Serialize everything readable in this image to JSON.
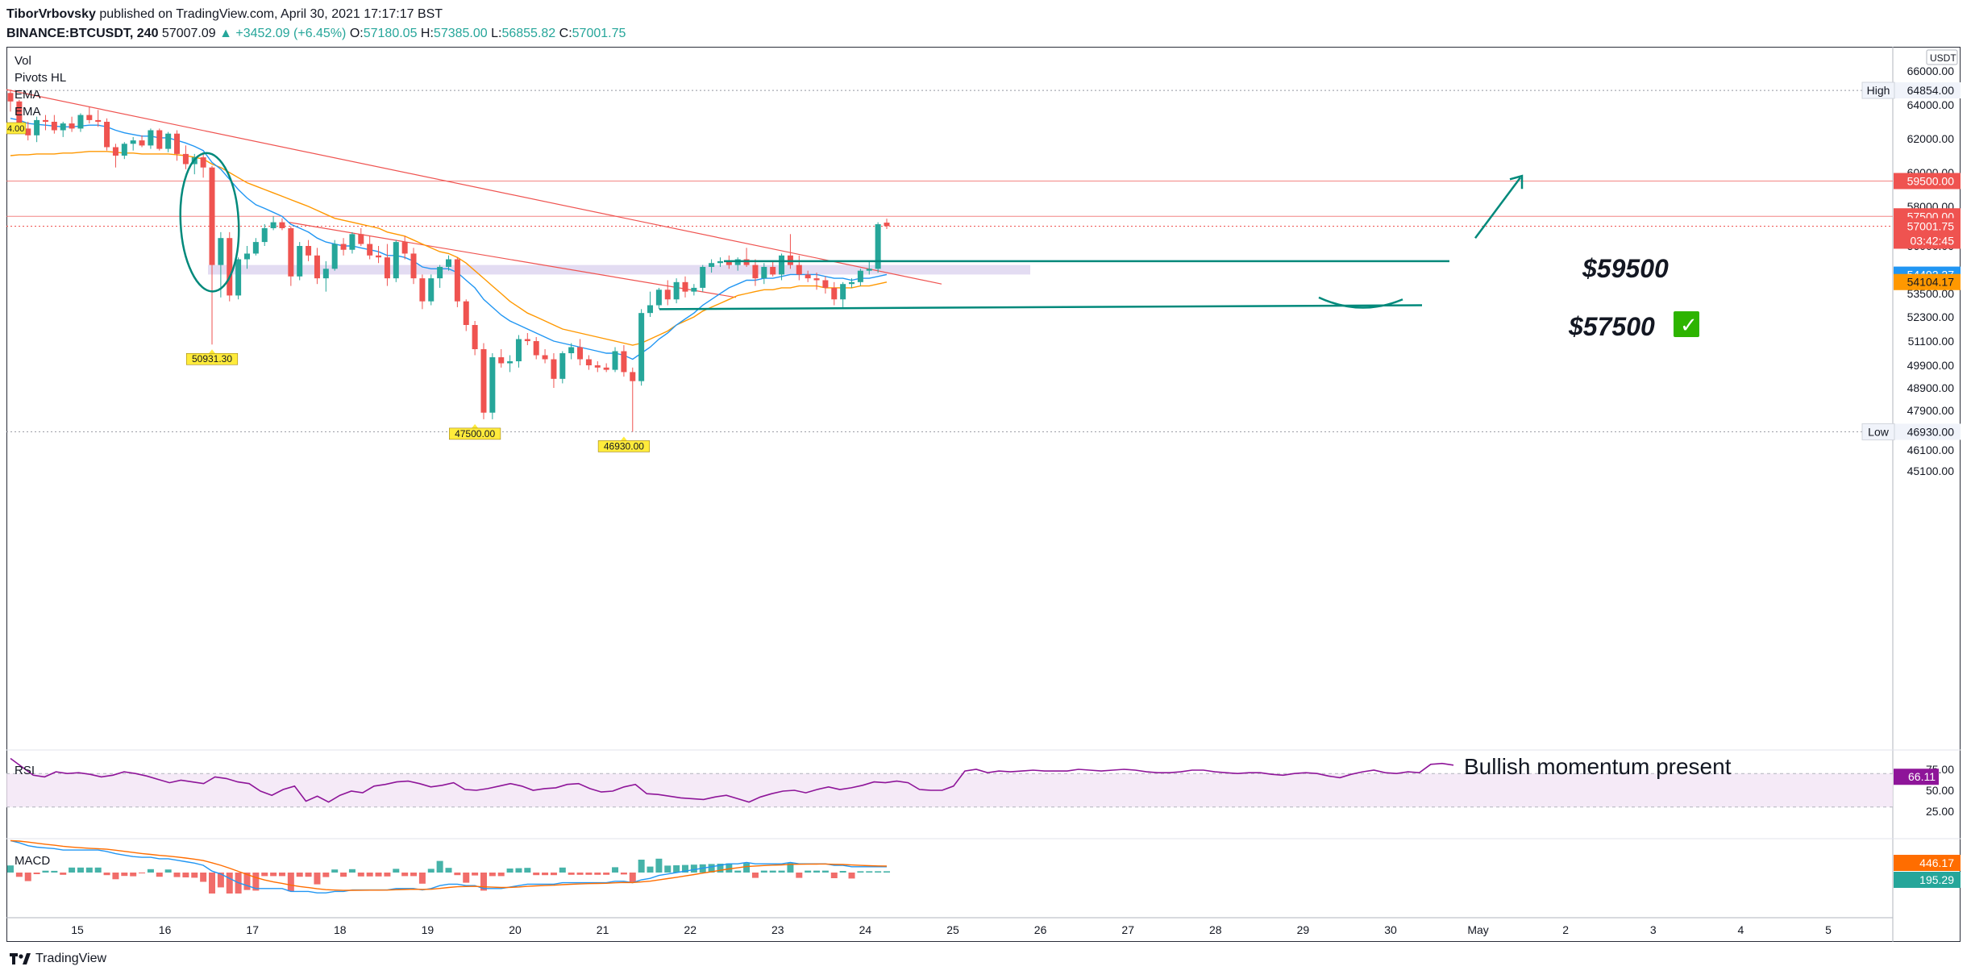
{
  "header": {
    "author": "TiborVrbovsky",
    "published": "published on TradingView.com, April 30, 2021 17:17:17 BST",
    "symbol": "BINANCE:BTCUSDT, 240",
    "last": "57007.09",
    "change": "▲ +3452.09 (+6.45%)",
    "o_label": "O:",
    "o_value": "57180.05",
    "h_label": "H:",
    "h_value": "57385.00",
    "l_label": "L:",
    "l_value": "56855.82",
    "c_label": "C:",
    "c_value": "57001.75"
  },
  "legend": [
    "Vol",
    "Pivots HL",
    "EMA",
    "EMA"
  ],
  "legend_left_tag": "4.00",
  "currency": "USDT",
  "footer": {
    "brand": "TradingView"
  },
  "colors": {
    "bull": "#26a69a",
    "bear": "#ef5350",
    "ema_fast": "#2196f3",
    "ema_slow": "#ff9800",
    "rsi": "#8e1599",
    "rsi_band": "#f3e5f5",
    "zone": "#d1c4e9",
    "trendline": "#ef5350",
    "drawing": "#00897b",
    "level": "#ef5350"
  },
  "chart_data": {
    "type": "candlestick",
    "y_axis_prices": [
      "66000.00",
      "64000.00",
      "62000.00",
      "60000.00",
      "58000.00",
      "56000.00",
      "53500.00",
      "52300.00",
      "51100.00",
      "49900.00",
      "48900.00",
      "47900.00",
      "46100.00",
      "45100.00"
    ],
    "ylim": [
      45100,
      66900
    ],
    "x_ticks": [
      "15",
      "16",
      "17",
      "18",
      "19",
      "20",
      "21",
      "22",
      "23",
      "24",
      "25",
      "26",
      "27",
      "28",
      "29",
      "30",
      "May",
      "2",
      "3",
      "4",
      "5"
    ],
    "price_tags": {
      "high": {
        "label": "High",
        "value": "64854.00"
      },
      "low": {
        "label": "Low",
        "value": "46930.00"
      },
      "level1": "59500.00",
      "level2": "57500.00",
      "last": "57001.75",
      "countdown": "03:42:45",
      "ema_fast": "54492.27",
      "ema_slow": "54104.17"
    },
    "pivot_labels": [
      "50931.30",
      "47500.00",
      "46930.00"
    ],
    "annotations": {
      "target1": "$59500",
      "target2": "$57500",
      "check": "✓",
      "rsi_note": "Bullish momentum present"
    },
    "rsi": {
      "label": "RSI",
      "value": "66.11",
      "ticks": [
        "75.00",
        "50.00",
        "25.00"
      ],
      "series": [
        88,
        78,
        68,
        66,
        72,
        70,
        71,
        69,
        66,
        68,
        72,
        70,
        67,
        63,
        59,
        62,
        60,
        58,
        66,
        64,
        60,
        58,
        49,
        44,
        51,
        55,
        37,
        43,
        36,
        44,
        49,
        47,
        55,
        57,
        60,
        61,
        58,
        54,
        56,
        59,
        51,
        50,
        52,
        55,
        58,
        55,
        50,
        52,
        53,
        57,
        58,
        52,
        48,
        49,
        54,
        57,
        46,
        45,
        43,
        41,
        40,
        39,
        42,
        44,
        40,
        36,
        42,
        46,
        49,
        50,
        47,
        51,
        54,
        51,
        53,
        56,
        60,
        59,
        61,
        59,
        51,
        50,
        50,
        55,
        73,
        75,
        71,
        73,
        72,
        73,
        74,
        73,
        73,
        73,
        75,
        74,
        73,
        74,
        75,
        74,
        72,
        71,
        71,
        72,
        74,
        74,
        72,
        71,
        70,
        71,
        71,
        69,
        68,
        70,
        71,
        70,
        67,
        65,
        69,
        72,
        74,
        71,
        70,
        72,
        71,
        81,
        82,
        80
      ]
    },
    "macd": {
      "label": "MACD",
      "value_signal": "446.17",
      "value_macd": "195.29"
    },
    "candles": [
      {
        "o": 64700,
        "h": 64900,
        "l": 63600,
        "c": 64200
      },
      {
        "o": 64200,
        "h": 64300,
        "l": 62300,
        "c": 62600
      },
      {
        "o": 62600,
        "h": 63000,
        "l": 61900,
        "c": 62200
      },
      {
        "o": 62200,
        "h": 63300,
        "l": 61800,
        "c": 63100
      },
      {
        "o": 63100,
        "h": 63400,
        "l": 62500,
        "c": 63000
      },
      {
        "o": 63000,
        "h": 63400,
        "l": 62300,
        "c": 62500
      },
      {
        "o": 62500,
        "h": 63000,
        "l": 62100,
        "c": 62900
      },
      {
        "o": 62900,
        "h": 63300,
        "l": 62400,
        "c": 62600
      },
      {
        "o": 62600,
        "h": 63500,
        "l": 62400,
        "c": 63400
      },
      {
        "o": 63400,
        "h": 63900,
        "l": 62900,
        "c": 63100
      },
      {
        "o": 63100,
        "h": 63700,
        "l": 62700,
        "c": 63000
      },
      {
        "o": 63000,
        "h": 63200,
        "l": 61300,
        "c": 61500
      },
      {
        "o": 61500,
        "h": 61700,
        "l": 60300,
        "c": 61000
      },
      {
        "o": 61000,
        "h": 61800,
        "l": 60800,
        "c": 61700
      },
      {
        "o": 61700,
        "h": 62100,
        "l": 61300,
        "c": 61900
      },
      {
        "o": 61900,
        "h": 62200,
        "l": 61500,
        "c": 61600
      },
      {
        "o": 61600,
        "h": 62600,
        "l": 61400,
        "c": 62500
      },
      {
        "o": 62500,
        "h": 62600,
        "l": 61300,
        "c": 61400
      },
      {
        "o": 61400,
        "h": 62400,
        "l": 61200,
        "c": 62300
      },
      {
        "o": 62300,
        "h": 62500,
        "l": 60700,
        "c": 61100
      },
      {
        "o": 61100,
        "h": 61600,
        "l": 60200,
        "c": 60500
      },
      {
        "o": 60500,
        "h": 61100,
        "l": 59900,
        "c": 60900
      },
      {
        "o": 60900,
        "h": 61200,
        "l": 59700,
        "c": 60300
      },
      {
        "o": 60300,
        "h": 60400,
        "l": 50931,
        "c": 55000
      },
      {
        "o": 55000,
        "h": 56700,
        "l": 53300,
        "c": 56400
      },
      {
        "o": 56400,
        "h": 56700,
        "l": 53100,
        "c": 53400
      },
      {
        "o": 53400,
        "h": 55400,
        "l": 53200,
        "c": 55300
      },
      {
        "o": 55300,
        "h": 56000,
        "l": 54800,
        "c": 55600
      },
      {
        "o": 55600,
        "h": 56400,
        "l": 55500,
        "c": 56200
      },
      {
        "o": 56200,
        "h": 57100,
        "l": 56000,
        "c": 56900
      },
      {
        "o": 56900,
        "h": 57500,
        "l": 56800,
        "c": 57200
      },
      {
        "o": 57200,
        "h": 57400,
        "l": 56800,
        "c": 56900
      },
      {
        "o": 56900,
        "h": 57000,
        "l": 53900,
        "c": 54400
      },
      {
        "o": 54400,
        "h": 56200,
        "l": 54200,
        "c": 56000
      },
      {
        "o": 56000,
        "h": 56300,
        "l": 55200,
        "c": 55500
      },
      {
        "o": 55500,
        "h": 55900,
        "l": 54000,
        "c": 54300
      },
      {
        "o": 54300,
        "h": 55200,
        "l": 53600,
        "c": 54800
      },
      {
        "o": 54800,
        "h": 56300,
        "l": 54700,
        "c": 56100
      },
      {
        "o": 56100,
        "h": 56400,
        "l": 55500,
        "c": 55800
      },
      {
        "o": 55800,
        "h": 56700,
        "l": 55600,
        "c": 56600
      },
      {
        "o": 56600,
        "h": 56900,
        "l": 56000,
        "c": 56100
      },
      {
        "o": 56100,
        "h": 56500,
        "l": 55300,
        "c": 55500
      },
      {
        "o": 55500,
        "h": 56000,
        "l": 55100,
        "c": 55400
      },
      {
        "o": 55400,
        "h": 56100,
        "l": 53900,
        "c": 54300
      },
      {
        "o": 54300,
        "h": 56300,
        "l": 54100,
        "c": 56200
      },
      {
        "o": 56200,
        "h": 56500,
        "l": 55300,
        "c": 55600
      },
      {
        "o": 55600,
        "h": 55900,
        "l": 54000,
        "c": 54300
      },
      {
        "o": 54300,
        "h": 54500,
        "l": 52700,
        "c": 53100
      },
      {
        "o": 53100,
        "h": 54500,
        "l": 52900,
        "c": 54300
      },
      {
        "o": 54300,
        "h": 55000,
        "l": 53800,
        "c": 54900
      },
      {
        "o": 54900,
        "h": 55500,
        "l": 54700,
        "c": 55300
      },
      {
        "o": 55300,
        "h": 55400,
        "l": 52800,
        "c": 53100
      },
      {
        "o": 53100,
        "h": 53200,
        "l": 51600,
        "c": 51900
      },
      {
        "o": 51900,
        "h": 52100,
        "l": 50400,
        "c": 50700
      },
      {
        "o": 50700,
        "h": 51000,
        "l": 47500,
        "c": 47800
      },
      {
        "o": 47800,
        "h": 50500,
        "l": 47500,
        "c": 50300
      },
      {
        "o": 50300,
        "h": 50700,
        "l": 49800,
        "c": 50000
      },
      {
        "o": 50000,
        "h": 50400,
        "l": 49600,
        "c": 50100
      },
      {
        "o": 50100,
        "h": 51400,
        "l": 49800,
        "c": 51200
      },
      {
        "o": 51200,
        "h": 51500,
        "l": 50900,
        "c": 51100
      },
      {
        "o": 51100,
        "h": 51300,
        "l": 50200,
        "c": 50400
      },
      {
        "o": 50400,
        "h": 50700,
        "l": 50000,
        "c": 50200
      },
      {
        "o": 50200,
        "h": 50500,
        "l": 48900,
        "c": 49300
      },
      {
        "o": 49300,
        "h": 50600,
        "l": 49100,
        "c": 50500
      },
      {
        "o": 50500,
        "h": 51000,
        "l": 50200,
        "c": 50800
      },
      {
        "o": 50800,
        "h": 51200,
        "l": 49900,
        "c": 50200
      },
      {
        "o": 50200,
        "h": 50400,
        "l": 49700,
        "c": 49900
      },
      {
        "o": 49900,
        "h": 50100,
        "l": 49600,
        "c": 49800
      },
      {
        "o": 49800,
        "h": 50000,
        "l": 49600,
        "c": 49700
      },
      {
        "o": 49700,
        "h": 50800,
        "l": 49600,
        "c": 50600
      },
      {
        "o": 50600,
        "h": 50900,
        "l": 49400,
        "c": 49600
      },
      {
        "o": 49600,
        "h": 49800,
        "l": 46930,
        "c": 49200
      },
      {
        "o": 49200,
        "h": 52700,
        "l": 49000,
        "c": 52500
      },
      {
        "o": 52500,
        "h": 53600,
        "l": 52300,
        "c": 52900
      },
      {
        "o": 52900,
        "h": 53800,
        "l": 52700,
        "c": 53700
      },
      {
        "o": 53700,
        "h": 54200,
        "l": 52900,
        "c": 53200
      },
      {
        "o": 53200,
        "h": 54300,
        "l": 53000,
        "c": 54100
      },
      {
        "o": 54100,
        "h": 54400,
        "l": 53300,
        "c": 53600
      },
      {
        "o": 53600,
        "h": 54000,
        "l": 53400,
        "c": 53800
      },
      {
        "o": 53800,
        "h": 55000,
        "l": 53600,
        "c": 54900
      },
      {
        "o": 54900,
        "h": 55300,
        "l": 54600,
        "c": 55100
      },
      {
        "o": 55100,
        "h": 55400,
        "l": 54900,
        "c": 55200
      },
      {
        "o": 55200,
        "h": 55500,
        "l": 54800,
        "c": 55000
      },
      {
        "o": 55000,
        "h": 55400,
        "l": 54700,
        "c": 55300
      },
      {
        "o": 55300,
        "h": 55900,
        "l": 54900,
        "c": 55000
      },
      {
        "o": 55000,
        "h": 55300,
        "l": 53900,
        "c": 54300
      },
      {
        "o": 54300,
        "h": 55100,
        "l": 54000,
        "c": 54900
      },
      {
        "o": 54900,
        "h": 55200,
        "l": 54400,
        "c": 54500
      },
      {
        "o": 54500,
        "h": 55600,
        "l": 54200,
        "c": 55500
      },
      {
        "o": 55500,
        "h": 56600,
        "l": 54800,
        "c": 55000
      },
      {
        "o": 55000,
        "h": 55500,
        "l": 54200,
        "c": 54500
      },
      {
        "o": 54500,
        "h": 54700,
        "l": 54100,
        "c": 54300
      },
      {
        "o": 54300,
        "h": 54600,
        "l": 53700,
        "c": 54200
      },
      {
        "o": 54200,
        "h": 54400,
        "l": 53500,
        "c": 53800
      },
      {
        "o": 53800,
        "h": 54100,
        "l": 52900,
        "c": 53200
      },
      {
        "o": 53200,
        "h": 54100,
        "l": 52800,
        "c": 54000
      },
      {
        "o": 54000,
        "h": 54300,
        "l": 53800,
        "c": 54100
      },
      {
        "o": 54100,
        "h": 54800,
        "l": 53900,
        "c": 54700
      },
      {
        "o": 54700,
        "h": 55200,
        "l": 54500,
        "c": 54800
      },
      {
        "o": 54800,
        "h": 57200,
        "l": 54600,
        "c": 57100
      },
      {
        "o": 57180,
        "h": 57385,
        "l": 56856,
        "c": 57002
      }
    ],
    "ema_fast": [
      63200,
      63100,
      62900,
      62850,
      62800,
      62750,
      62700,
      62700,
      62750,
      62800,
      62800,
      62700,
      62500,
      62350,
      62250,
      62150,
      62150,
      62050,
      62050,
      61900,
      61750,
      61550,
      61300,
      60600,
      60200,
      59600,
      59000,
      58500,
      58100,
      57900,
      57700,
      57500,
      57100,
      56900,
      56700,
      56400,
      56200,
      56100,
      56000,
      56000,
      55900,
      55800,
      55700,
      55500,
      55500,
      55400,
      55200,
      54900,
      54800,
      54800,
      54800,
      54600,
      54200,
      53800,
      53200,
      52800,
      52400,
      52100,
      51900,
      51700,
      51500,
      51300,
      51100,
      51000,
      50900,
      50800,
      50700,
      50600,
      50500,
      50500,
      50400,
      50200,
      50500,
      50800,
      51200,
      51500,
      51900,
      52200,
      52500,
      52900,
      53200,
      53500,
      53800,
      54000,
      54200,
      54200,
      54300,
      54300,
      54400,
      54500,
      54500,
      54500,
      54500,
      54400,
      54300,
      54300,
      54200,
      54300,
      54300,
      54400,
      54500
    ],
    "ema_slow": [
      61000,
      61050,
      61050,
      61100,
      61100,
      61100,
      61150,
      61150,
      61200,
      61250,
      61250,
      61250,
      61200,
      61150,
      61150,
      61100,
      61100,
      61100,
      61100,
      61050,
      61000,
      60900,
      60800,
      60500,
      60300,
      60000,
      59700,
      59400,
      59200,
      59000,
      58800,
      58600,
      58400,
      58200,
      58000,
      57800,
      57600,
      57400,
      57300,
      57200,
      57100,
      57000,
      56900,
      56700,
      56600,
      56500,
      56300,
      56100,
      55900,
      55700,
      55600,
      55400,
      55100,
      54700,
      54300,
      53900,
      53500,
      53100,
      52800,
      52500,
      52300,
      52100,
      51900,
      51700,
      51600,
      51500,
      51400,
      51300,
      51200,
      51100,
      51000,
      50900,
      51000,
      51200,
      51400,
      51600,
      51900,
      52100,
      52300,
      52600,
      52800,
      53000,
      53200,
      53400,
      53500,
      53600,
      53700,
      53700,
      53800,
      53800,
      53900,
      53900,
      53900,
      53800,
      53800,
      53800,
      53800,
      53900,
      53900,
      54000,
      54100
    ]
  }
}
